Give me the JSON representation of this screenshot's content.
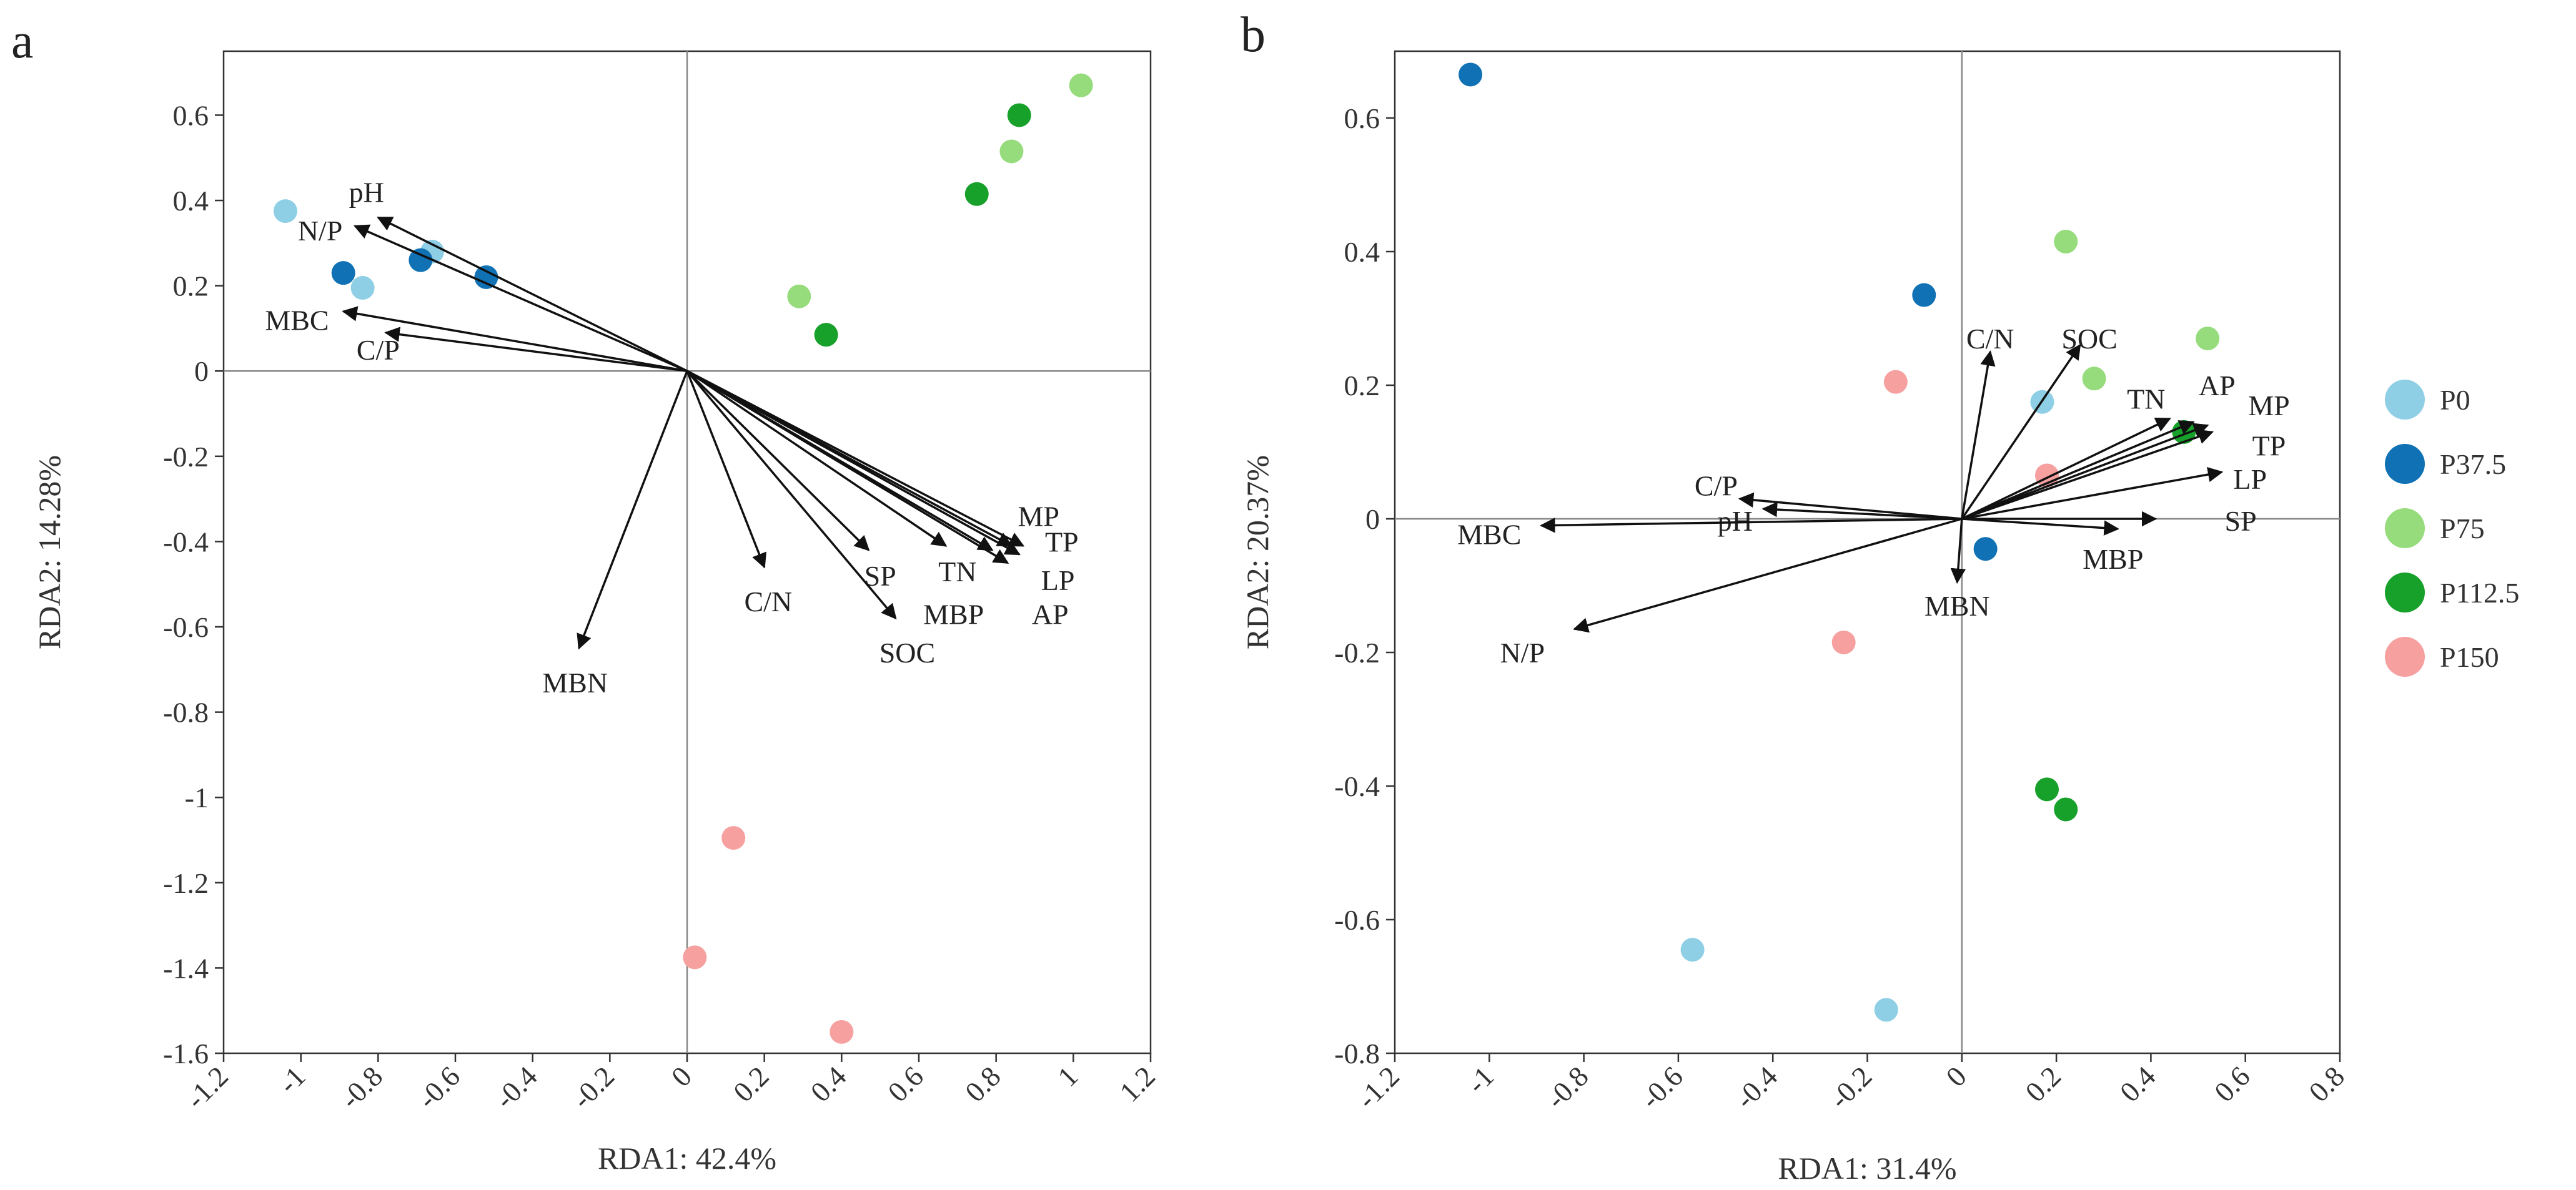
{
  "chart_data": [
    {
      "type": "scatter",
      "panel_label": "a",
      "xlabel": "RDA1: 42.4%",
      "ylabel": "RDA2: 14.28%",
      "xlim": [
        -1.2,
        1.2
      ],
      "ylim": [
        -1.6,
        0.75
      ],
      "xticks": [
        -1.2,
        -1,
        -0.8,
        -0.6,
        -0.4,
        -0.2,
        0,
        0.2,
        0.4,
        0.6,
        0.8,
        1,
        1.2
      ],
      "xtick_labels": [
        "-1.2",
        "-1",
        "-0.8",
        "-0.6",
        "-0.4",
        "-0.2",
        "0",
        "0.2",
        "0.4",
        "0.6",
        "0.8",
        "1",
        "1.2"
      ],
      "yticks": [
        0.6,
        0.4,
        0.2,
        0,
        -0.2,
        -0.4,
        -0.6,
        -0.8,
        -1,
        -1.2,
        -1.4,
        -1.6
      ],
      "ytick_labels": [
        "0.6",
        "0.4",
        "0.2",
        "0",
        "-0.2",
        "-0.4",
        "-0.6",
        "-0.8",
        "-1",
        "-1.2",
        "-1.4",
        "-1.6"
      ],
      "series": [
        {
          "name": "P0",
          "points": [
            [
              -1.04,
              0.375
            ],
            [
              -0.84,
              0.195
            ],
            [
              -0.66,
              0.28
            ]
          ]
        },
        {
          "name": "P37.5",
          "points": [
            [
              -0.89,
              0.23
            ],
            [
              -0.69,
              0.26
            ],
            [
              -0.52,
              0.22
            ]
          ]
        },
        {
          "name": "P75",
          "points": [
            [
              1.02,
              0.67
            ],
            [
              0.84,
              0.515
            ],
            [
              0.29,
              0.175
            ]
          ]
        },
        {
          "name": "P112.5",
          "points": [
            [
              0.86,
              0.6
            ],
            [
              0.75,
              0.415
            ],
            [
              0.36,
              0.085
            ]
          ]
        },
        {
          "name": "P150",
          "points": [
            [
              0.12,
              -1.095
            ],
            [
              0.02,
              -1.375
            ],
            [
              0.4,
              -1.55
            ]
          ]
        }
      ],
      "vectors": [
        {
          "name": "pH",
          "end": [
            -0.8,
            0.36
          ],
          "label": [
            -0.83,
            0.42
          ]
        },
        {
          "name": "N/P",
          "end": [
            -0.86,
            0.34
          ],
          "label": [
            -0.95,
            0.33
          ]
        },
        {
          "name": "MBC",
          "end": [
            -0.89,
            0.14
          ],
          "label": [
            -1.01,
            0.12
          ]
        },
        {
          "name": "C/P",
          "end": [
            -0.78,
            0.09
          ],
          "label": [
            -0.8,
            0.05
          ]
        },
        {
          "name": "MBN",
          "end": [
            -0.28,
            -0.65
          ],
          "label": [
            -0.29,
            -0.73
          ]
        },
        {
          "name": "C/N",
          "end": [
            0.2,
            -0.46
          ],
          "label": [
            0.21,
            -0.54
          ]
        },
        {
          "name": "SP",
          "end": [
            0.47,
            -0.42
          ],
          "label": [
            0.5,
            -0.48
          ]
        },
        {
          "name": "SOC",
          "end": [
            0.54,
            -0.58
          ],
          "label": [
            0.57,
            -0.66
          ]
        },
        {
          "name": "TN",
          "end": [
            0.67,
            -0.41
          ],
          "label": [
            0.7,
            -0.47
          ]
        },
        {
          "name": "MBP",
          "end": [
            0.79,
            -0.42
          ],
          "label": [
            0.69,
            -0.57
          ]
        },
        {
          "name": "MP",
          "end": [
            0.84,
            -0.41
          ],
          "label": [
            0.91,
            -0.34
          ]
        },
        {
          "name": "TP",
          "end": [
            0.87,
            -0.41
          ],
          "label": [
            0.97,
            -0.4
          ]
        },
        {
          "name": "LP",
          "end": [
            0.83,
            -0.45
          ],
          "label": [
            0.96,
            -0.49
          ]
        },
        {
          "name": "AP",
          "end": [
            0.86,
            -0.43
          ],
          "label": [
            0.94,
            -0.57
          ]
        }
      ]
    },
    {
      "type": "scatter",
      "panel_label": "b",
      "xlabel": "RDA1: 31.4%",
      "ylabel": "RDA2: 20.37%",
      "xlim": [
        -1.2,
        0.8
      ],
      "ylim": [
        -0.8,
        0.7
      ],
      "xticks": [
        -1.2,
        -1,
        -0.8,
        -0.6,
        -0.4,
        -0.2,
        0,
        0.2,
        0.4,
        0.6,
        0.8
      ],
      "xtick_labels": [
        "-1.2",
        "-1",
        "-0.8",
        "-0.6",
        "-0.4",
        "-0.2",
        "0",
        "0.2",
        "0.4",
        "0.6",
        "0.8"
      ],
      "yticks": [
        0.6,
        0.4,
        0.2,
        0,
        -0.2,
        -0.4,
        -0.6,
        -0.8
      ],
      "ytick_labels": [
        "0.6",
        "0.4",
        "0.2",
        "0",
        "-0.2",
        "-0.4",
        "-0.6",
        "-0.8"
      ],
      "series": [
        {
          "name": "P0",
          "points": [
            [
              0.17,
              0.175
            ],
            [
              -0.57,
              -0.645
            ],
            [
              -0.16,
              -0.735
            ]
          ]
        },
        {
          "name": "P37.5",
          "points": [
            [
              -1.04,
              0.665
            ],
            [
              -0.08,
              0.335
            ],
            [
              0.05,
              -0.045
            ]
          ]
        },
        {
          "name": "P75",
          "points": [
            [
              0.22,
              0.415
            ],
            [
              0.52,
              0.27
            ],
            [
              0.28,
              0.21
            ]
          ]
        },
        {
          "name": "P112.5",
          "points": [
            [
              0.47,
              0.13
            ],
            [
              0.18,
              -0.405
            ],
            [
              0.22,
              -0.435
            ]
          ]
        },
        {
          "name": "P150",
          "points": [
            [
              -0.14,
              0.205
            ],
            [
              0.18,
              0.065
            ],
            [
              -0.25,
              -0.185
            ]
          ]
        }
      ],
      "vectors": [
        {
          "name": "C/N",
          "end": [
            0.06,
            0.25
          ],
          "label": [
            0.06,
            0.27
          ]
        },
        {
          "name": "SOC",
          "end": [
            0.25,
            0.26
          ],
          "label": [
            0.27,
            0.27
          ]
        },
        {
          "name": "TN",
          "end": [
            0.44,
            0.15
          ],
          "label": [
            0.39,
            0.18
          ]
        },
        {
          "name": "AP",
          "end": [
            0.49,
            0.145
          ],
          "label": [
            0.54,
            0.2
          ]
        },
        {
          "name": "MP",
          "end": [
            0.52,
            0.14
          ],
          "label": [
            0.65,
            0.17
          ]
        },
        {
          "name": "TP",
          "end": [
            0.53,
            0.13
          ],
          "label": [
            0.65,
            0.11
          ]
        },
        {
          "name": "LP",
          "end": [
            0.55,
            0.07
          ],
          "label": [
            0.61,
            0.06
          ]
        },
        {
          "name": "SP",
          "end": [
            0.41,
            0.0
          ],
          "label": [
            0.59,
            -0.003
          ]
        },
        {
          "name": "MBP",
          "end": [
            0.33,
            -0.015
          ],
          "label": [
            0.32,
            -0.06
          ]
        },
        {
          "name": "MBN",
          "end": [
            -0.01,
            -0.095
          ],
          "label": [
            -0.01,
            -0.13
          ]
        },
        {
          "name": "C/P",
          "end": [
            -0.47,
            0.03
          ],
          "label": [
            -0.52,
            0.05
          ]
        },
        {
          "name": "pH",
          "end": [
            -0.42,
            0.015
          ],
          "label": [
            -0.48,
            -0.003
          ]
        },
        {
          "name": "MBC",
          "end": [
            -0.89,
            -0.01
          ],
          "label": [
            -1.0,
            -0.023
          ]
        },
        {
          "name": "N/P",
          "end": [
            -0.82,
            -0.165
          ],
          "label": [
            -0.93,
            -0.2
          ]
        }
      ]
    }
  ],
  "legend": {
    "position": "right",
    "items": [
      {
        "name": "P0",
        "color": "#8ecfe6"
      },
      {
        "name": "P37.5",
        "color": "#1072b4"
      },
      {
        "name": "P75",
        "color": "#96dc7d"
      },
      {
        "name": "P112.5",
        "color": "#17a02a"
      },
      {
        "name": "P150",
        "color": "#f6a0a0"
      }
    ]
  }
}
